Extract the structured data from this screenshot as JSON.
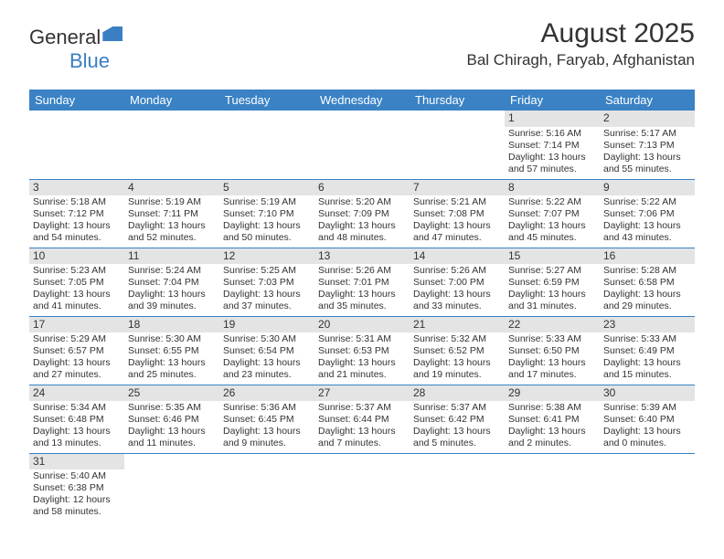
{
  "logo": {
    "text1": "General",
    "text2": "Blue"
  },
  "title": "August 2025",
  "location": "Bal Chiragh, Faryab, Afghanistan",
  "colors": {
    "header_bg": "#3a82c4",
    "header_fg": "#ffffff",
    "daynum_bg": "#e4e4e4",
    "rule": "#3a82c4"
  },
  "weekdays": [
    "Sunday",
    "Monday",
    "Tuesday",
    "Wednesday",
    "Thursday",
    "Friday",
    "Saturday"
  ],
  "weeks": [
    [
      null,
      null,
      null,
      null,
      null,
      {
        "d": "1",
        "sr": "5:16 AM",
        "ss": "7:14 PM",
        "dl": "13 hours and 57 minutes."
      },
      {
        "d": "2",
        "sr": "5:17 AM",
        "ss": "7:13 PM",
        "dl": "13 hours and 55 minutes."
      }
    ],
    [
      {
        "d": "3",
        "sr": "5:18 AM",
        "ss": "7:12 PM",
        "dl": "13 hours and 54 minutes."
      },
      {
        "d": "4",
        "sr": "5:19 AM",
        "ss": "7:11 PM",
        "dl": "13 hours and 52 minutes."
      },
      {
        "d": "5",
        "sr": "5:19 AM",
        "ss": "7:10 PM",
        "dl": "13 hours and 50 minutes."
      },
      {
        "d": "6",
        "sr": "5:20 AM",
        "ss": "7:09 PM",
        "dl": "13 hours and 48 minutes."
      },
      {
        "d": "7",
        "sr": "5:21 AM",
        "ss": "7:08 PM",
        "dl": "13 hours and 47 minutes."
      },
      {
        "d": "8",
        "sr": "5:22 AM",
        "ss": "7:07 PM",
        "dl": "13 hours and 45 minutes."
      },
      {
        "d": "9",
        "sr": "5:22 AM",
        "ss": "7:06 PM",
        "dl": "13 hours and 43 minutes."
      }
    ],
    [
      {
        "d": "10",
        "sr": "5:23 AM",
        "ss": "7:05 PM",
        "dl": "13 hours and 41 minutes."
      },
      {
        "d": "11",
        "sr": "5:24 AM",
        "ss": "7:04 PM",
        "dl": "13 hours and 39 minutes."
      },
      {
        "d": "12",
        "sr": "5:25 AM",
        "ss": "7:03 PM",
        "dl": "13 hours and 37 minutes."
      },
      {
        "d": "13",
        "sr": "5:26 AM",
        "ss": "7:01 PM",
        "dl": "13 hours and 35 minutes."
      },
      {
        "d": "14",
        "sr": "5:26 AM",
        "ss": "7:00 PM",
        "dl": "13 hours and 33 minutes."
      },
      {
        "d": "15",
        "sr": "5:27 AM",
        "ss": "6:59 PM",
        "dl": "13 hours and 31 minutes."
      },
      {
        "d": "16",
        "sr": "5:28 AM",
        "ss": "6:58 PM",
        "dl": "13 hours and 29 minutes."
      }
    ],
    [
      {
        "d": "17",
        "sr": "5:29 AM",
        "ss": "6:57 PM",
        "dl": "13 hours and 27 minutes."
      },
      {
        "d": "18",
        "sr": "5:30 AM",
        "ss": "6:55 PM",
        "dl": "13 hours and 25 minutes."
      },
      {
        "d": "19",
        "sr": "5:30 AM",
        "ss": "6:54 PM",
        "dl": "13 hours and 23 minutes."
      },
      {
        "d": "20",
        "sr": "5:31 AM",
        "ss": "6:53 PM",
        "dl": "13 hours and 21 minutes."
      },
      {
        "d": "21",
        "sr": "5:32 AM",
        "ss": "6:52 PM",
        "dl": "13 hours and 19 minutes."
      },
      {
        "d": "22",
        "sr": "5:33 AM",
        "ss": "6:50 PM",
        "dl": "13 hours and 17 minutes."
      },
      {
        "d": "23",
        "sr": "5:33 AM",
        "ss": "6:49 PM",
        "dl": "13 hours and 15 minutes."
      }
    ],
    [
      {
        "d": "24",
        "sr": "5:34 AM",
        "ss": "6:48 PM",
        "dl": "13 hours and 13 minutes."
      },
      {
        "d": "25",
        "sr": "5:35 AM",
        "ss": "6:46 PM",
        "dl": "13 hours and 11 minutes."
      },
      {
        "d": "26",
        "sr": "5:36 AM",
        "ss": "6:45 PM",
        "dl": "13 hours and 9 minutes."
      },
      {
        "d": "27",
        "sr": "5:37 AM",
        "ss": "6:44 PM",
        "dl": "13 hours and 7 minutes."
      },
      {
        "d": "28",
        "sr": "5:37 AM",
        "ss": "6:42 PM",
        "dl": "13 hours and 5 minutes."
      },
      {
        "d": "29",
        "sr": "5:38 AM",
        "ss": "6:41 PM",
        "dl": "13 hours and 2 minutes."
      },
      {
        "d": "30",
        "sr": "5:39 AM",
        "ss": "6:40 PM",
        "dl": "13 hours and 0 minutes."
      }
    ],
    [
      {
        "d": "31",
        "sr": "5:40 AM",
        "ss": "6:38 PM",
        "dl": "12 hours and 58 minutes."
      },
      null,
      null,
      null,
      null,
      null,
      null
    ]
  ],
  "labels": {
    "sunrise": "Sunrise: ",
    "sunset": "Sunset: ",
    "daylight": "Daylight: "
  }
}
